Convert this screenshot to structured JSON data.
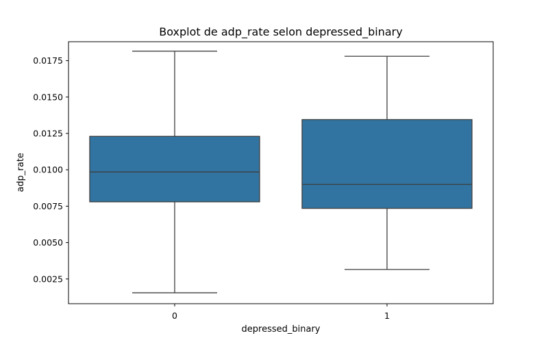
{
  "chart_data": {
    "type": "box",
    "title": "Boxplot de adp_rate selon depressed_binary",
    "xlabel": "depressed_binary",
    "ylabel": "adp_rate",
    "categories": [
      "0",
      "1"
    ],
    "ylim": [
      0.0008,
      0.0188
    ],
    "yticks": [
      0.0025,
      0.005,
      0.0075,
      0.01,
      0.0125,
      0.015,
      0.0175
    ],
    "ytick_labels": [
      "0.0025",
      "0.0050",
      "0.0075",
      "0.0100",
      "0.0125",
      "0.0150",
      "0.0175"
    ],
    "grid": false,
    "box_color": "#3274a1",
    "line_color": "#3d3d3d",
    "boxes": [
      {
        "category": "0",
        "whisker_low": 0.00155,
        "q1": 0.0078,
        "median": 0.00985,
        "q3": 0.0123,
        "whisker_high": 0.01815
      },
      {
        "category": "1",
        "whisker_low": 0.00315,
        "q1": 0.00735,
        "median": 0.009,
        "q3": 0.01345,
        "whisker_high": 0.0178
      }
    ]
  }
}
